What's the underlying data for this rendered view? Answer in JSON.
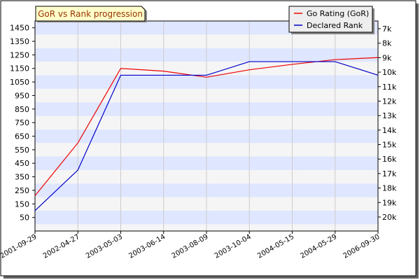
{
  "chart_data": {
    "type": "line",
    "title": "GoR vs Rank progression",
    "x": [
      "2001-09-29",
      "2002-04-27",
      "2003-05-03",
      "2003-06-14",
      "2003-08-09",
      "2003-10-04",
      "2004-05-15",
      "2004-05-29",
      "2006-09-30"
    ],
    "xlabel": "",
    "ylabel": "",
    "ylim": [
      -50,
      1500
    ],
    "yticks": [
      50,
      150,
      250,
      350,
      450,
      550,
      650,
      750,
      850,
      950,
      1050,
      1150,
      1250,
      1350,
      1450
    ],
    "y2_ticks": [
      "7k",
      "8k",
      "9k",
      "10k",
      "11k",
      "12k",
      "13k",
      "14k",
      "15k",
      "16k",
      "17k",
      "18k",
      "19k",
      "20k"
    ],
    "grid": true,
    "legend_position": "top-right",
    "series": [
      {
        "name": "Go Rating (GoR)",
        "color": "#ee0000",
        "values": [
          210,
          600,
          1150,
          1130,
          1085,
          1140,
          1180,
          1215,
          1230
        ]
      },
      {
        "name": "Declared Rank",
        "color": "#0000cc",
        "values": [
          100,
          400,
          1100,
          1100,
          1100,
          1200,
          1200,
          1200,
          1100
        ]
      }
    ]
  }
}
